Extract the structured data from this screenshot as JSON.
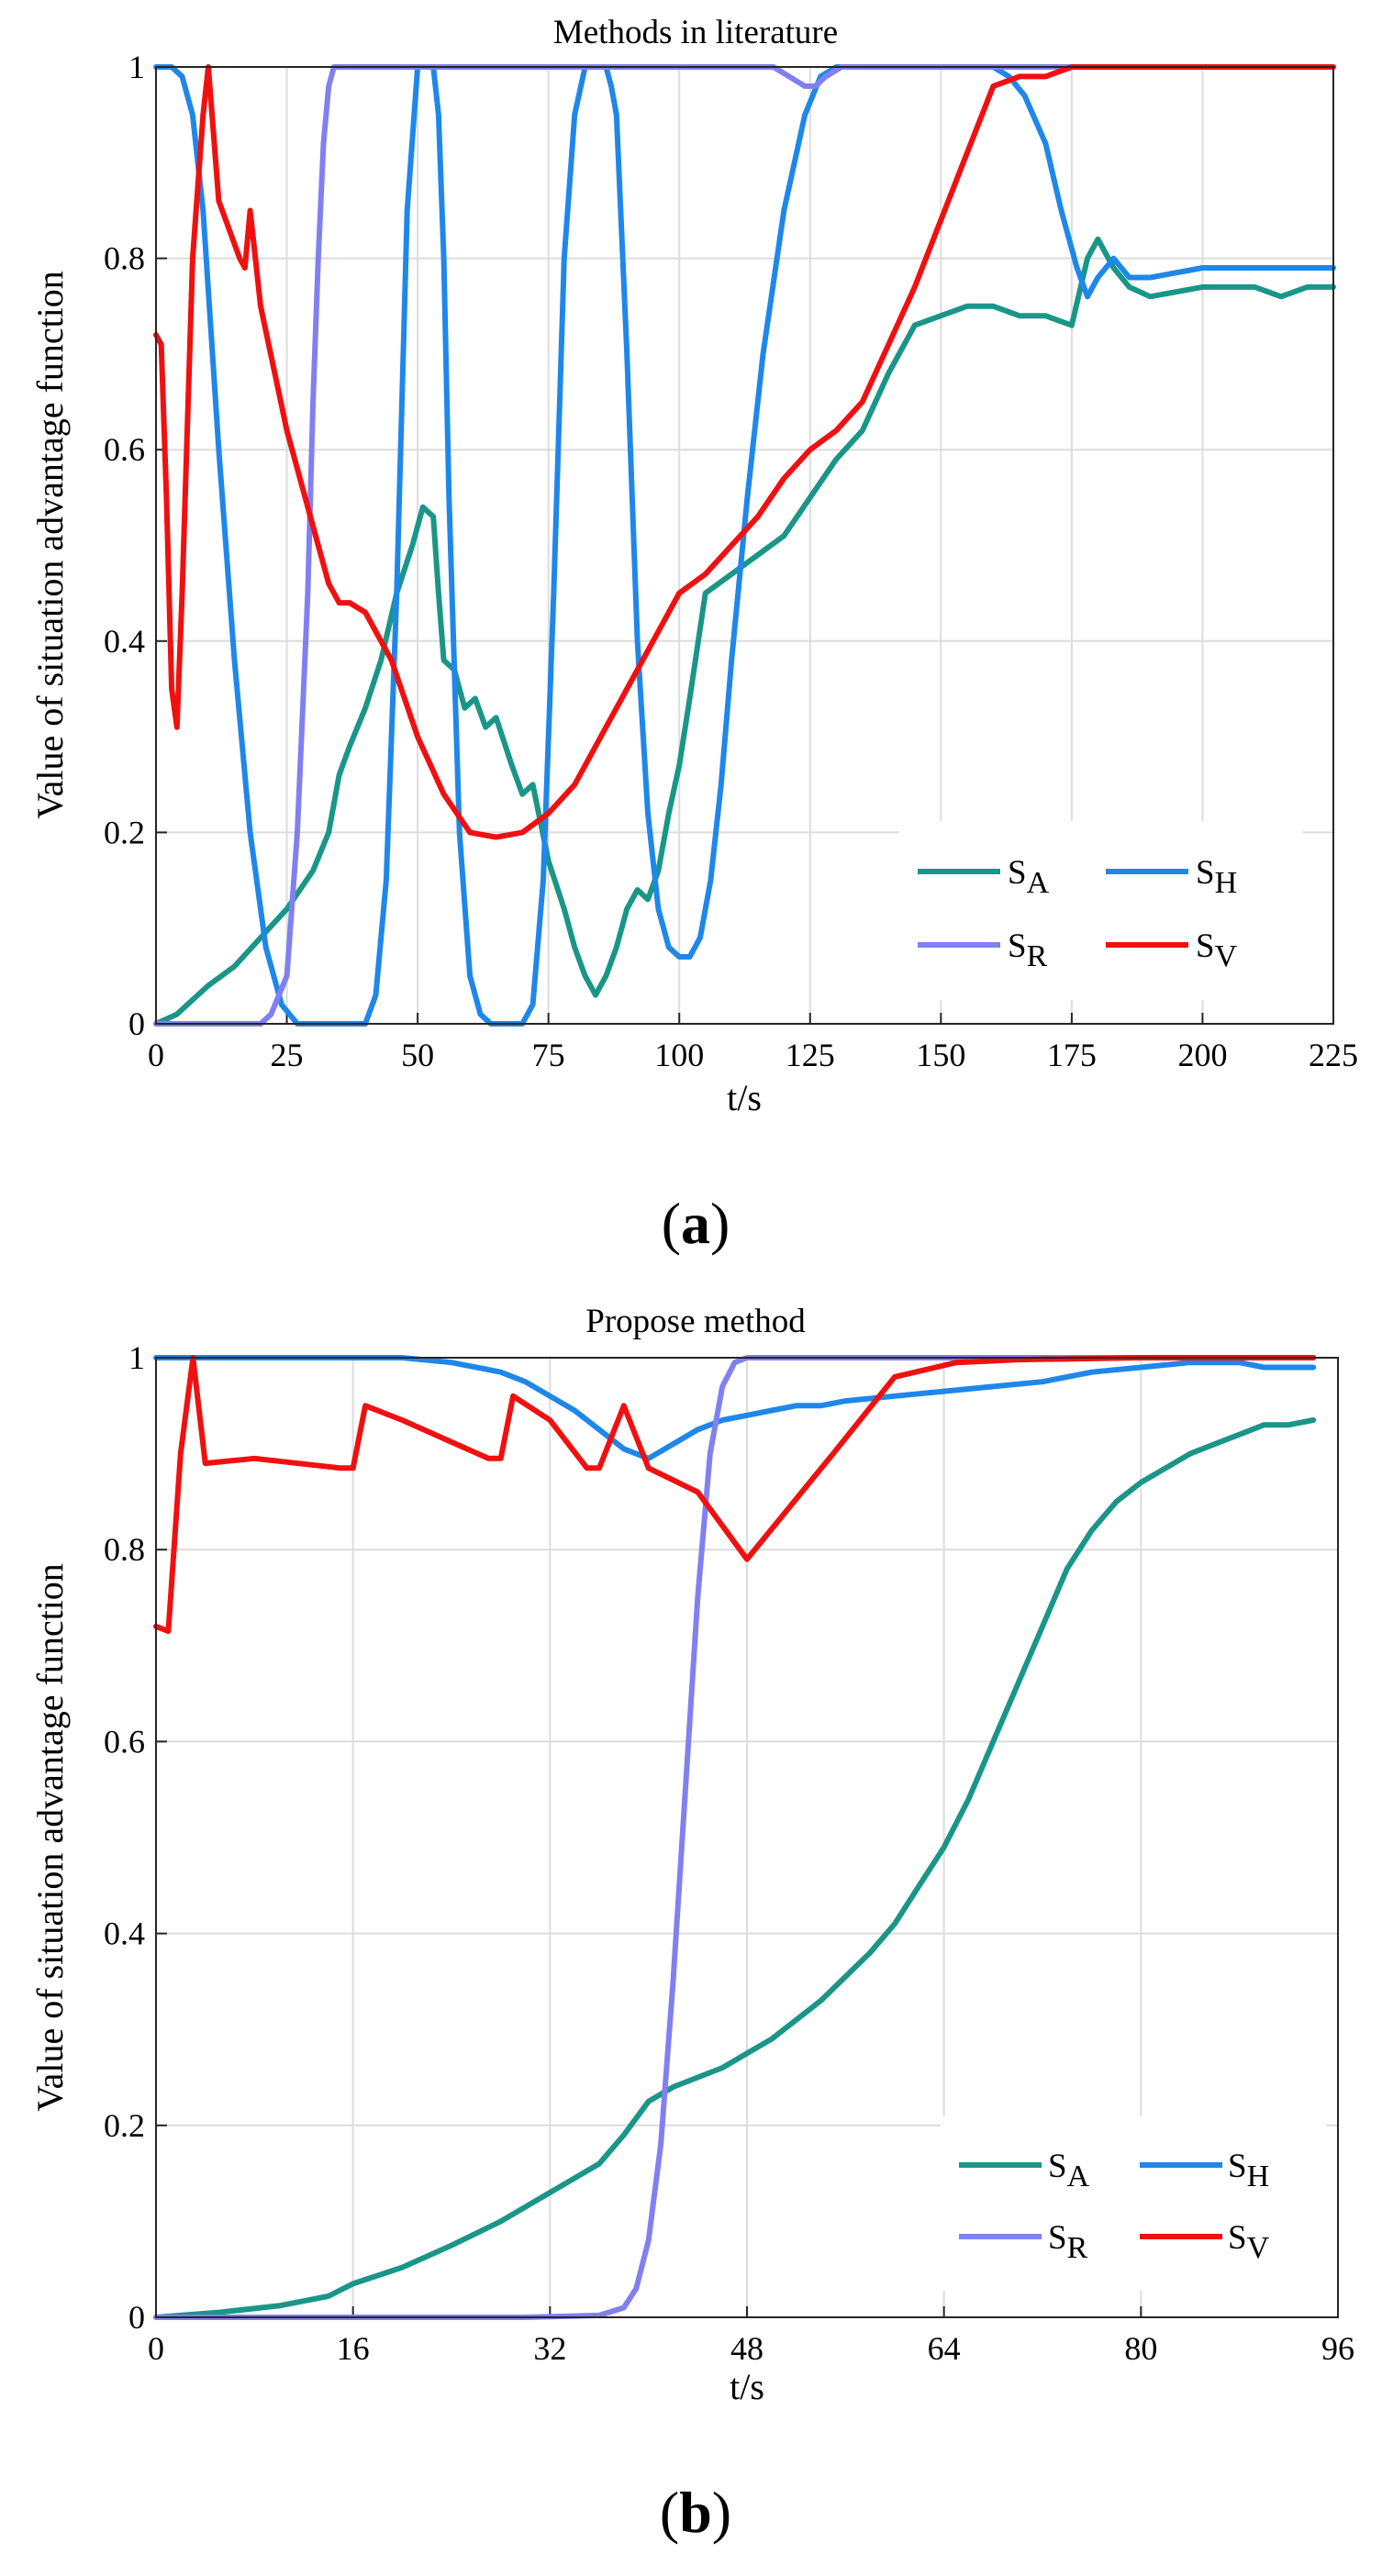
{
  "chart_data": [
    {
      "type": "line",
      "title": "Methods in literature",
      "panel_label": "a",
      "xlabel": "t/s",
      "ylabel": "Value of situation advantage function",
      "xlim": [
        0,
        225
      ],
      "ylim": [
        0,
        1
      ],
      "xticks": [
        0,
        25,
        50,
        75,
        100,
        125,
        150,
        175,
        200,
        225
      ],
      "xtick_labels": [
        "0",
        "25",
        "50",
        "75",
        "100",
        "125",
        "150",
        "175",
        "200",
        "225"
      ],
      "yticks": [
        0,
        0.2,
        0.4,
        0.6,
        0.8,
        1
      ],
      "ytick_labels": [
        "0",
        "0.2",
        "0.4",
        "0.6",
        "0.8",
        "1"
      ],
      "grid": true,
      "legend_position": "bottom-right",
      "series": [
        {
          "name": "S_A",
          "label_main": "S",
          "label_sub": "A",
          "color": "#1a9688",
          "x": [
            0,
            4,
            6,
            10,
            15,
            20,
            25,
            30,
            33,
            35,
            37,
            40,
            43,
            46,
            49,
            51,
            53,
            54,
            55,
            57,
            59,
            61,
            63,
            65,
            68,
            70,
            72,
            75,
            78,
            80,
            82,
            84,
            86,
            88,
            90,
            92,
            94,
            96,
            98,
            100,
            102,
            105,
            110,
            115,
            120,
            125,
            130,
            135,
            140,
            145,
            150,
            155,
            160,
            165,
            170,
            175,
            178,
            180,
            183,
            186,
            190,
            200,
            210,
            215,
            220,
            225
          ],
          "y": [
            0,
            0.01,
            0.02,
            0.04,
            0.06,
            0.09,
            0.12,
            0.16,
            0.2,
            0.26,
            0.29,
            0.33,
            0.38,
            0.45,
            0.5,
            0.54,
            0.53,
            0.45,
            0.38,
            0.37,
            0.33,
            0.34,
            0.31,
            0.32,
            0.27,
            0.24,
            0.25,
            0.17,
            0.12,
            0.08,
            0.05,
            0.03,
            0.05,
            0.08,
            0.12,
            0.14,
            0.13,
            0.16,
            0.22,
            0.27,
            0.34,
            0.45,
            0.47,
            0.49,
            0.51,
            0.55,
            0.59,
            0.62,
            0.68,
            0.73,
            0.74,
            0.75,
            0.75,
            0.74,
            0.74,
            0.73,
            0.8,
            0.82,
            0.79,
            0.77,
            0.76,
            0.77,
            0.77,
            0.76,
            0.77,
            0.77
          ]
        },
        {
          "name": "S_H",
          "label_main": "S",
          "label_sub": "H",
          "color": "#1f87ea",
          "x": [
            0,
            3,
            5,
            7,
            9,
            12,
            15,
            18,
            21,
            24,
            27,
            30,
            35,
            40,
            42,
            44,
            46,
            48,
            50,
            51,
            52,
            53,
            54,
            55,
            56,
            58,
            60,
            62,
            64,
            66,
            68,
            70,
            72,
            74,
            76,
            78,
            80,
            82,
            84,
            85,
            86,
            87,
            88,
            90,
            92,
            94,
            96,
            98,
            100,
            102,
            104,
            106,
            108,
            110,
            113,
            116,
            120,
            124,
            127,
            130,
            135,
            140,
            145,
            150,
            155,
            160,
            163,
            166,
            170,
            173,
            176,
            178,
            180,
            183,
            186,
            190,
            200,
            210,
            220,
            225
          ],
          "y": [
            1,
            1,
            0.99,
            0.95,
            0.85,
            0.6,
            0.38,
            0.2,
            0.08,
            0.02,
            0,
            0,
            0,
            0,
            0.03,
            0.15,
            0.45,
            0.85,
            1,
            1,
            1,
            1,
            0.95,
            0.8,
            0.55,
            0.2,
            0.05,
            0.01,
            0,
            0,
            0,
            0,
            0.02,
            0.15,
            0.45,
            0.8,
            0.95,
            1,
            1,
            1,
            1,
            0.98,
            0.95,
            0.7,
            0.4,
            0.22,
            0.12,
            0.08,
            0.07,
            0.07,
            0.09,
            0.15,
            0.25,
            0.38,
            0.55,
            0.7,
            0.85,
            0.95,
            0.99,
            1,
            1,
            1,
            1,
            1,
            1,
            1,
            0.99,
            0.97,
            0.92,
            0.85,
            0.79,
            0.76,
            0.78,
            0.8,
            0.78,
            0.78,
            0.79,
            0.79,
            0.79,
            0.79
          ]
        },
        {
          "name": "S_R",
          "label_main": "S",
          "label_sub": "R",
          "color": "#8080f0",
          "x": [
            0,
            15,
            20,
            22,
            25,
            27,
            29,
            30,
            31,
            32,
            33,
            34,
            35,
            40,
            60,
            80,
            100,
            118,
            121,
            124,
            126,
            128,
            131,
            150,
            180,
            200,
            225
          ],
          "y": [
            0,
            0,
            0,
            0.01,
            0.05,
            0.2,
            0.45,
            0.65,
            0.8,
            0.92,
            0.98,
            1,
            1,
            1,
            1,
            1,
            1,
            1,
            0.99,
            0.98,
            0.98,
            0.99,
            1,
            1,
            1,
            1,
            1
          ]
        },
        {
          "name": "S_V",
          "label_main": "S",
          "label_sub": "V",
          "color": "#f01010",
          "x": [
            0,
            1,
            2,
            3,
            4,
            5,
            7,
            9,
            10,
            11,
            12,
            14,
            16,
            17,
            18,
            19,
            20,
            25,
            28,
            33,
            34,
            35,
            37,
            40,
            45,
            50,
            55,
            60,
            65,
            70,
            75,
            80,
            85,
            90,
            95,
            100,
            105,
            110,
            115,
            120,
            125,
            130,
            135,
            140,
            145,
            150,
            155,
            160,
            165,
            170,
            175,
            180,
            200,
            225
          ],
          "y": [
            0.72,
            0.71,
            0.55,
            0.35,
            0.31,
            0.45,
            0.8,
            0.95,
            1,
            0.93,
            0.86,
            0.83,
            0.8,
            0.79,
            0.85,
            0.8,
            0.75,
            0.62,
            0.56,
            0.46,
            0.45,
            0.44,
            0.44,
            0.43,
            0.38,
            0.3,
            0.24,
            0.2,
            0.195,
            0.2,
            0.22,
            0.25,
            0.3,
            0.35,
            0.4,
            0.45,
            0.47,
            0.5,
            0.53,
            0.57,
            0.6,
            0.62,
            0.65,
            0.71,
            0.77,
            0.84,
            0.91,
            0.98,
            0.99,
            0.99,
            1,
            1,
            1,
            1
          ]
        }
      ]
    },
    {
      "type": "line",
      "title": "Propose method",
      "panel_label": "b",
      "xlabel": "t/s",
      "ylabel": "Value of situation advantage function",
      "xlim": [
        0,
        96
      ],
      "ylim": [
        0,
        1
      ],
      "xticks": [
        0,
        16,
        32,
        48,
        64,
        80,
        96
      ],
      "xtick_labels": [
        "0",
        "16",
        "32",
        "48",
        "64",
        "80",
        "96"
      ],
      "yticks": [
        0,
        0.2,
        0.4,
        0.6,
        0.8,
        1
      ],
      "ytick_labels": [
        "0",
        "0.2",
        "0.4",
        "0.6",
        "0.8",
        "1"
      ],
      "grid": true,
      "legend_position": "bottom-right",
      "series": [
        {
          "name": "S_A",
          "label_main": "S",
          "label_sub": "A",
          "color": "#1a9688",
          "x": [
            0,
            5,
            10,
            14,
            16,
            20,
            24,
            28,
            32,
            36,
            38,
            40,
            42,
            44,
            46,
            48,
            50,
            52,
            54,
            56,
            58,
            60,
            62,
            64,
            66,
            68,
            70,
            72,
            74,
            76,
            78,
            80,
            82,
            84,
            86,
            88,
            90,
            92,
            94
          ],
          "y": [
            0,
            0.005,
            0.012,
            0.022,
            0.035,
            0.052,
            0.075,
            0.1,
            0.13,
            0.16,
            0.19,
            0.225,
            0.24,
            0.25,
            0.26,
            0.275,
            0.29,
            0.31,
            0.33,
            0.355,
            0.38,
            0.41,
            0.45,
            0.49,
            0.54,
            0.6,
            0.66,
            0.72,
            0.78,
            0.82,
            0.85,
            0.87,
            0.885,
            0.9,
            0.91,
            0.92,
            0.93,
            0.93,
            0.935
          ]
        },
        {
          "name": "S_H",
          "label_main": "S",
          "label_sub": "H",
          "color": "#1f87ea",
          "x": [
            0,
            10,
            20,
            24,
            28,
            30,
            32,
            34,
            36,
            38,
            40,
            42,
            44,
            46,
            48,
            50,
            52,
            54,
            56,
            60,
            64,
            68,
            72,
            76,
            80,
            84,
            88,
            90,
            94
          ],
          "y": [
            1,
            1,
            1,
            0.995,
            0.985,
            0.975,
            0.96,
            0.945,
            0.925,
            0.905,
            0.895,
            0.91,
            0.925,
            0.935,
            0.94,
            0.945,
            0.95,
            0.95,
            0.955,
            0.96,
            0.965,
            0.97,
            0.975,
            0.985,
            0.99,
            0.995,
            0.995,
            0.99,
            0.99
          ]
        },
        {
          "name": "S_R",
          "label_main": "S",
          "label_sub": "R",
          "color": "#8080f0",
          "x": [
            0,
            30,
            36,
            38,
            39,
            40,
            41,
            42,
            43,
            44,
            45,
            46,
            47,
            48,
            50,
            60,
            80,
            94
          ],
          "y": [
            0,
            0,
            0.002,
            0.01,
            0.03,
            0.08,
            0.18,
            0.35,
            0.55,
            0.75,
            0.9,
            0.97,
            0.995,
            1,
            1,
            1,
            1,
            1
          ]
        },
        {
          "name": "S_V",
          "label_main": "S",
          "label_sub": "V",
          "color": "#f01010",
          "x": [
            0,
            1,
            2,
            3,
            4,
            8,
            15,
            16,
            17,
            20,
            27,
            28,
            29,
            32,
            35,
            36,
            38,
            40,
            44,
            48,
            55,
            60,
            65,
            70,
            80,
            94
          ],
          "y": [
            0.72,
            0.715,
            0.9,
            1,
            0.89,
            0.895,
            0.885,
            0.885,
            0.95,
            0.935,
            0.895,
            0.895,
            0.96,
            0.935,
            0.885,
            0.885,
            0.95,
            0.885,
            0.86,
            0.79,
            0.9,
            0.98,
            0.995,
            0.998,
            1,
            1
          ]
        }
      ]
    }
  ]
}
